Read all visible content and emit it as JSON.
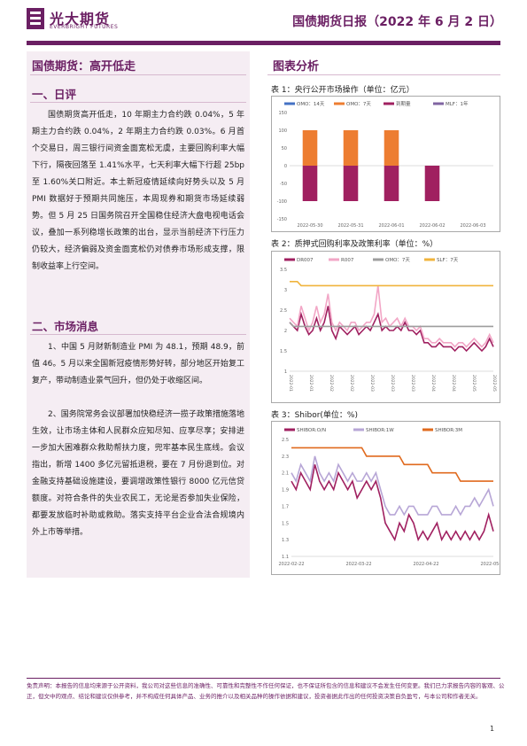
{
  "header": {
    "logo_cn": "光大期货",
    "logo_en": "EVERBRIGHT FUTURES",
    "doc_title": "国债期货日报（2022 年 6 月 2 日）",
    "brand_color": "#6b1f63"
  },
  "left": {
    "title": "国债期货：高开低走",
    "section1": {
      "title": "一、日评",
      "body": "国债期货高开低走，10 年期主力合约跌 0.04%，5 年期主力合约跌 0.04%，2 年期主力合约跌 0.03%。6 月首个交易日，周三银行间资金面宽松无虞，主要回购利率大幅下行，隔夜回落至 1.41%水平，七天利率大幅下行超 25bp 至 1.60%关口附近。本土新冠疫情延续向好势头以及 5 月 PMI 数据好于预期共同施压，本周现券和期货市场延续弱势。但 5 月 25 日国务院召开全国稳住经济大盘电视电话会议，叠加一系列稳增长政策的出台，显示当前经济下行压力仍较大，经济偏弱及资金面宽松仍对债券市场形成支撑，限制收益率上行空间。"
    },
    "section2": {
      "title": "二、市场消息",
      "p1": "1、中国 5 月财新制造业 PMI 为 48.1，预期 48.9，前值 46。5 月以来全国新冠疫情形势好转，部分地区开始复工复产，带动制造业景气回升，但仍处于收缩区间。",
      "p2": "2、国务院常务会议部署加快稳经济一揽子政策措施落地生效，让市场主体和人民群众应知尽知、应享尽享；安排进一步加大困难群众救助帮扶力度，兜牢基本民生底线。会议指出，新增 1400 多亿元留抵退税，要在 7 月份退到位。对金融支持基础设施建设，要调增政策性银行 8000 亿元信贷额度。对符合条件的失业农民工，无论是否参加失业保险，都要发放临时补助或救助。落实支持平台企业合法合规境内外上市等举措。"
    }
  },
  "right": {
    "title": "图表分析",
    "charts": [
      {
        "caption": "表 1：央行公开市场操作（单位：亿元）"
      },
      {
        "caption": "表 2：质押式回购利率及政策利率（单位：%）"
      },
      {
        "caption": "表 3：Shibor(单位：%)"
      }
    ]
  },
  "chart_data": [
    {
      "type": "bar",
      "title": "表 1：央行公开市场操作（单位：亿元）",
      "categories": [
        "2022-05-30",
        "2022-05-31",
        "2022-06-01",
        "2022-06-02",
        "2022-06-03"
      ],
      "ylim": [
        -150,
        150
      ],
      "yticks": [
        -150,
        -100,
        -50,
        0,
        50,
        100,
        150
      ],
      "series": [
        {
          "name": "OMO：14天",
          "color": "#4472c4",
          "values": [
            0,
            0,
            0,
            0,
            0
          ]
        },
        {
          "name": "OMO：7天",
          "color": "#ed7d31",
          "values": [
            100,
            100,
            100,
            0,
            0
          ]
        },
        {
          "name": "到期量",
          "color": "#a02060",
          "values": [
            -100,
            -100,
            -100,
            -100,
            0
          ]
        },
        {
          "name": "MLF：1年",
          "color": "#8064a2",
          "values": [
            0,
            0,
            0,
            0,
            0
          ]
        }
      ]
    },
    {
      "type": "line",
      "title": "表 2：质押式回购利率及政策利率（单位：%）",
      "ylim": [
        1,
        3.5
      ],
      "yticks": [
        1,
        1.5,
        2,
        2.5,
        3,
        3.5
      ],
      "xtick_labels": [
        "2022-01",
        "2022-01",
        "2022-02",
        "2022-02",
        "2022-03",
        "2022-03",
        "2022-03",
        "2022-04",
        "2022-04",
        "2022-05",
        "2022-05"
      ],
      "series": [
        {
          "name": "DR007",
          "color": "#a02060",
          "values": [
            2.2,
            2.1,
            2.0,
            2.4,
            2.1,
            1.9,
            2.0,
            2.3,
            2.0,
            2.2,
            2.6,
            2.0,
            1.8,
            2.1,
            2.0,
            1.9,
            2.0,
            2.1,
            1.9,
            2.0,
            2.1,
            2.0,
            2.2,
            2.4,
            2.0,
            2.1,
            2.0,
            2.0,
            2.1,
            2.0,
            2.2,
            2.0,
            2.0,
            1.9,
            2.0,
            1.7,
            1.7,
            1.6,
            1.6,
            1.7,
            1.6,
            1.6,
            1.6,
            1.5,
            1.6,
            1.6,
            1.5,
            1.6,
            1.7,
            1.6,
            1.5,
            1.6,
            1.8,
            1.6
          ]
        },
        {
          "name": "R007",
          "color": "#f2a6c6",
          "values": [
            2.3,
            2.2,
            2.1,
            2.6,
            2.3,
            2.0,
            2.2,
            2.6,
            2.2,
            2.4,
            2.9,
            2.2,
            2.0,
            2.2,
            2.1,
            2.0,
            2.2,
            2.2,
            2.0,
            2.1,
            2.2,
            2.2,
            2.4,
            3.1,
            2.2,
            2.3,
            2.1,
            2.2,
            2.3,
            2.1,
            2.3,
            2.1,
            2.1,
            2.0,
            2.1,
            1.8,
            1.8,
            1.7,
            1.7,
            1.8,
            1.7,
            1.7,
            1.7,
            1.6,
            1.7,
            1.7,
            1.6,
            1.7,
            1.8,
            1.7,
            1.6,
            1.7,
            1.9,
            1.7
          ]
        },
        {
          "name": "OMO：7天",
          "color": "#9e9e9e",
          "values": [
            2.2,
            2.1,
            2.1,
            2.1,
            2.1,
            2.1,
            2.1,
            2.1,
            2.1,
            2.1,
            2.1,
            2.1,
            2.1,
            2.1,
            2.1,
            2.1,
            2.1,
            2.1,
            2.1,
            2.1,
            2.1,
            2.1,
            2.1,
            2.1,
            2.1,
            2.1,
            2.1,
            2.1,
            2.1,
            2.1,
            2.1,
            2.1,
            2.1,
            2.1,
            2.1,
            2.1,
            2.1,
            2.1,
            2.1,
            2.1,
            2.1,
            2.1,
            2.1,
            2.1,
            2.1,
            2.1,
            2.1,
            2.1,
            2.1,
            2.1,
            2.1,
            2.1,
            2.1,
            2.1
          ]
        },
        {
          "name": "SLF：7天",
          "color": "#f0b43c",
          "values": [
            3.2,
            3.2,
            3.2,
            3.1,
            3.1,
            3.1,
            3.1,
            3.1,
            3.1,
            3.1,
            3.1,
            3.1,
            3.1,
            3.1,
            3.1,
            3.1,
            3.1,
            3.1,
            3.1,
            3.1,
            3.1,
            3.1,
            3.1,
            3.1,
            3.1,
            3.1,
            3.1,
            3.1,
            3.1,
            3.1,
            3.1,
            3.1,
            3.1,
            3.1,
            3.1,
            3.1,
            3.1,
            3.1,
            3.1,
            3.1,
            3.1,
            3.1,
            3.1,
            3.1,
            3.1,
            3.1,
            3.1,
            3.1,
            3.1,
            3.1,
            3.1,
            3.1,
            3.1,
            3.1
          ]
        }
      ]
    },
    {
      "type": "line",
      "title": "表 3：Shibor(单位：%)",
      "ylim": [
        1.1,
        2.5
      ],
      "yticks": [
        1.1,
        1.3,
        1.5,
        1.7,
        1.9,
        2.1,
        2.3,
        2.5
      ],
      "xtick_labels": [
        "2022-02-22",
        "2022-03-22",
        "2022-04-22",
        "2022-05-22"
      ],
      "series": [
        {
          "name": "SHIBOR:O/N",
          "color": "#a02060",
          "values": [
            2.0,
            1.9,
            2.1,
            2.0,
            1.9,
            2.2,
            2.0,
            1.9,
            2.0,
            1.9,
            2.1,
            2.0,
            1.9,
            2.0,
            1.8,
            1.9,
            2.0,
            1.9,
            2.0,
            1.8,
            1.5,
            1.4,
            1.3,
            1.5,
            1.4,
            1.6,
            1.5,
            1.3,
            1.4,
            1.3,
            1.4,
            1.5,
            1.3,
            1.4,
            1.3,
            1.4,
            1.3,
            1.4,
            1.3,
            1.4,
            1.3,
            1.4,
            1.6,
            1.4
          ]
        },
        {
          "name": "SHIBOR:1W",
          "color": "#b7a6d6",
          "values": [
            2.1,
            2.0,
            2.2,
            2.1,
            2.0,
            2.3,
            2.1,
            2.0,
            2.1,
            2.0,
            2.2,
            2.1,
            2.0,
            2.1,
            2.0,
            2.0,
            2.1,
            2.0,
            2.1,
            1.9,
            1.7,
            1.6,
            1.6,
            1.7,
            1.6,
            1.7,
            1.7,
            1.6,
            1.6,
            1.6,
            1.7,
            1.7,
            1.6,
            1.6,
            1.6,
            1.7,
            1.6,
            1.7,
            1.7,
            1.8,
            1.7,
            1.8,
            1.9,
            1.7
          ]
        },
        {
          "name": "SHIBOR:3M",
          "color": "#e06a1e",
          "values": [
            2.4,
            2.4,
            2.4,
            2.4,
            2.4,
            2.4,
            2.4,
            2.4,
            2.4,
            2.4,
            2.4,
            2.4,
            2.4,
            2.4,
            2.4,
            2.4,
            2.3,
            2.3,
            2.3,
            2.3,
            2.3,
            2.3,
            2.3,
            2.3,
            2.2,
            2.2,
            2.2,
            2.2,
            2.2,
            2.2,
            2.1,
            2.1,
            2.1,
            2.1,
            2.1,
            2.1,
            2.0,
            2.0,
            2.0,
            2.0,
            2.0,
            2.0,
            2.0,
            2.0
          ]
        }
      ]
    }
  ],
  "footer": {
    "disclaimer": "免责声明：本报告的信息均来源于公开资料，我公司对这些信息的准确性、可靠性和完整性不作任何保证，也不保证所包含的信息和建议不会发生任何变更。我们已力求报告内容的客观、公正，但文中的观点、结论和建议仅供参考，并不构成任何具体产品、业务的推介以及相关品种的操作依据和建议，投资者据此作出的任何投资决策自负盈亏，与本公司和作者无关。",
    "page_number": "1"
  }
}
